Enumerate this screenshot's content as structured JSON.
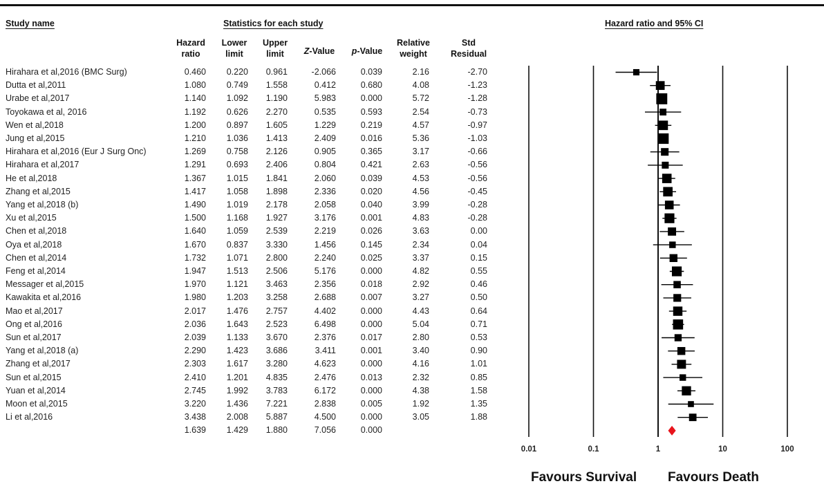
{
  "chart_data": {
    "type": "forest",
    "headers": {
      "study_name": "Study name",
      "stats_group": "Statistics for each study",
      "plot_title": "Hazard ratio and 95% CI",
      "columns": [
        [
          "Hazard",
          "ratio"
        ],
        [
          "Lower",
          "limit"
        ],
        [
          "Upper",
          "limit"
        ],
        [
          "Z-Value",
          ""
        ],
        [
          "p-Value",
          ""
        ],
        [
          "Relative",
          "weight"
        ],
        [
          "Std",
          "Residual"
        ]
      ]
    },
    "studies": [
      {
        "name": "Hirahara et al,2016 (BMC Surg)",
        "hr": "0.460",
        "lower": "0.220",
        "upper": "0.961",
        "z": "-2.066",
        "p": "0.039",
        "weight": "2.16",
        "resid": "-2.70"
      },
      {
        "name": "Dutta et al,2011",
        "hr": "1.080",
        "lower": "0.749",
        "upper": "1.558",
        "z": "0.412",
        "p": "0.680",
        "weight": "4.08",
        "resid": "-1.23"
      },
      {
        "name": "Urabe et al,2017",
        "hr": "1.140",
        "lower": "1.092",
        "upper": "1.190",
        "z": "5.983",
        "p": "0.000",
        "weight": "5.72",
        "resid": "-1.28"
      },
      {
        "name": "Toyokawa et al, 2016",
        "hr": "1.192",
        "lower": "0.626",
        "upper": "2.270",
        "z": "0.535",
        "p": "0.593",
        "weight": "2.54",
        "resid": "-0.73"
      },
      {
        "name": "Wen et al,2018",
        "hr": "1.200",
        "lower": "0.897",
        "upper": "1.605",
        "z": "1.229",
        "p": "0.219",
        "weight": "4.57",
        "resid": "-0.97"
      },
      {
        "name": "Jung et al,2015",
        "hr": "1.210",
        "lower": "1.036",
        "upper": "1.413",
        "z": "2.409",
        "p": "0.016",
        "weight": "5.36",
        "resid": "-1.03"
      },
      {
        "name": "Hirahara et al,2016 (Eur J Surg Onc)",
        "hr": "1.269",
        "lower": "0.758",
        "upper": "2.126",
        "z": "0.905",
        "p": "0.365",
        "weight": "3.17",
        "resid": "-0.66"
      },
      {
        "name": "Hirahara et al,2017",
        "hr": "1.291",
        "lower": "0.693",
        "upper": "2.406",
        "z": "0.804",
        "p": "0.421",
        "weight": "2.63",
        "resid": "-0.56"
      },
      {
        "name": "He et al,2018",
        "hr": "1.367",
        "lower": "1.015",
        "upper": "1.841",
        "z": "2.060",
        "p": "0.039",
        "weight": "4.53",
        "resid": "-0.56"
      },
      {
        "name": "Zhang et al,2015",
        "hr": "1.417",
        "lower": "1.058",
        "upper": "1.898",
        "z": "2.336",
        "p": "0.020",
        "weight": "4.56",
        "resid": "-0.45"
      },
      {
        "name": "Yang et al,2018 (b)",
        "hr": "1.490",
        "lower": "1.019",
        "upper": "2.178",
        "z": "2.058",
        "p": "0.040",
        "weight": "3.99",
        "resid": "-0.28"
      },
      {
        "name": "Xu et al,2015",
        "hr": "1.500",
        "lower": "1.168",
        "upper": "1.927",
        "z": "3.176",
        "p": "0.001",
        "weight": "4.83",
        "resid": "-0.28"
      },
      {
        "name": "Chen et al,2018",
        "hr": "1.640",
        "lower": "1.059",
        "upper": "2.539",
        "z": "2.219",
        "p": "0.026",
        "weight": "3.63",
        "resid": "0.00"
      },
      {
        "name": "Oya et al,2018",
        "hr": "1.670",
        "lower": "0.837",
        "upper": "3.330",
        "z": "1.456",
        "p": "0.145",
        "weight": "2.34",
        "resid": "0.04"
      },
      {
        "name": "Chen et al,2014",
        "hr": "1.732",
        "lower": "1.071",
        "upper": "2.800",
        "z": "2.240",
        "p": "0.025",
        "weight": "3.37",
        "resid": "0.15"
      },
      {
        "name": "Feng et al,2014",
        "hr": "1.947",
        "lower": "1.513",
        "upper": "2.506",
        "z": "5.176",
        "p": "0.000",
        "weight": "4.82",
        "resid": "0.55"
      },
      {
        "name": "Messager et al,2015",
        "hr": "1.970",
        "lower": "1.121",
        "upper": "3.463",
        "z": "2.356",
        "p": "0.018",
        "weight": "2.92",
        "resid": "0.46"
      },
      {
        "name": "Kawakita et al,2016",
        "hr": "1.980",
        "lower": "1.203",
        "upper": "3.258",
        "z": "2.688",
        "p": "0.007",
        "weight": "3.27",
        "resid": "0.50"
      },
      {
        "name": "Mao et al,2017",
        "hr": "2.017",
        "lower": "1.476",
        "upper": "2.757",
        "z": "4.402",
        "p": "0.000",
        "weight": "4.43",
        "resid": "0.64"
      },
      {
        "name": "Ong et al,2016",
        "hr": "2.036",
        "lower": "1.643",
        "upper": "2.523",
        "z": "6.498",
        "p": "0.000",
        "weight": "5.04",
        "resid": "0.71"
      },
      {
        "name": "Sun et al,2017",
        "hr": "2.039",
        "lower": "1.133",
        "upper": "3.670",
        "z": "2.376",
        "p": "0.017",
        "weight": "2.80",
        "resid": "0.53"
      },
      {
        "name": "Yang et al,2018 (a)",
        "hr": "2.290",
        "lower": "1.423",
        "upper": "3.686",
        "z": "3.411",
        "p": "0.001",
        "weight": "3.40",
        "resid": "0.90"
      },
      {
        "name": "Zhang et al,2017",
        "hr": "2.303",
        "lower": "1.617",
        "upper": "3.280",
        "z": "4.623",
        "p": "0.000",
        "weight": "4.16",
        "resid": "1.01"
      },
      {
        "name": "Sun et al,2015",
        "hr": "2.410",
        "lower": "1.201",
        "upper": "4.835",
        "z": "2.476",
        "p": "0.013",
        "weight": "2.32",
        "resid": "0.85"
      },
      {
        "name": "Yuan et al,2014",
        "hr": "2.745",
        "lower": "1.992",
        "upper": "3.783",
        "z": "6.172",
        "p": "0.000",
        "weight": "4.38",
        "resid": "1.58"
      },
      {
        "name": "Moon et al,2015",
        "hr": "3.220",
        "lower": "1.436",
        "upper": "7.221",
        "z": "2.838",
        "p": "0.005",
        "weight": "1.92",
        "resid": "1.35"
      },
      {
        "name": "Li et al,2016",
        "hr": "3.438",
        "lower": "2.008",
        "upper": "5.887",
        "z": "4.500",
        "p": "0.000",
        "weight": "3.05",
        "resid": "1.88"
      }
    ],
    "pooled": {
      "hr": "1.639",
      "lower": "1.429",
      "upper": "1.880",
      "z": "7.056",
      "p": "0.000"
    },
    "x_axis": {
      "scale": "log",
      "ticks": [
        "0.01",
        "0.1",
        "1",
        "10",
        "100"
      ],
      "tick_values": [
        0.01,
        0.1,
        1,
        10,
        100
      ]
    },
    "favours_left": "Favours Survival",
    "favours_right": "Favours Death",
    "colors": {
      "marker": "#000000",
      "pooled_diamond": "#e8141c"
    }
  }
}
